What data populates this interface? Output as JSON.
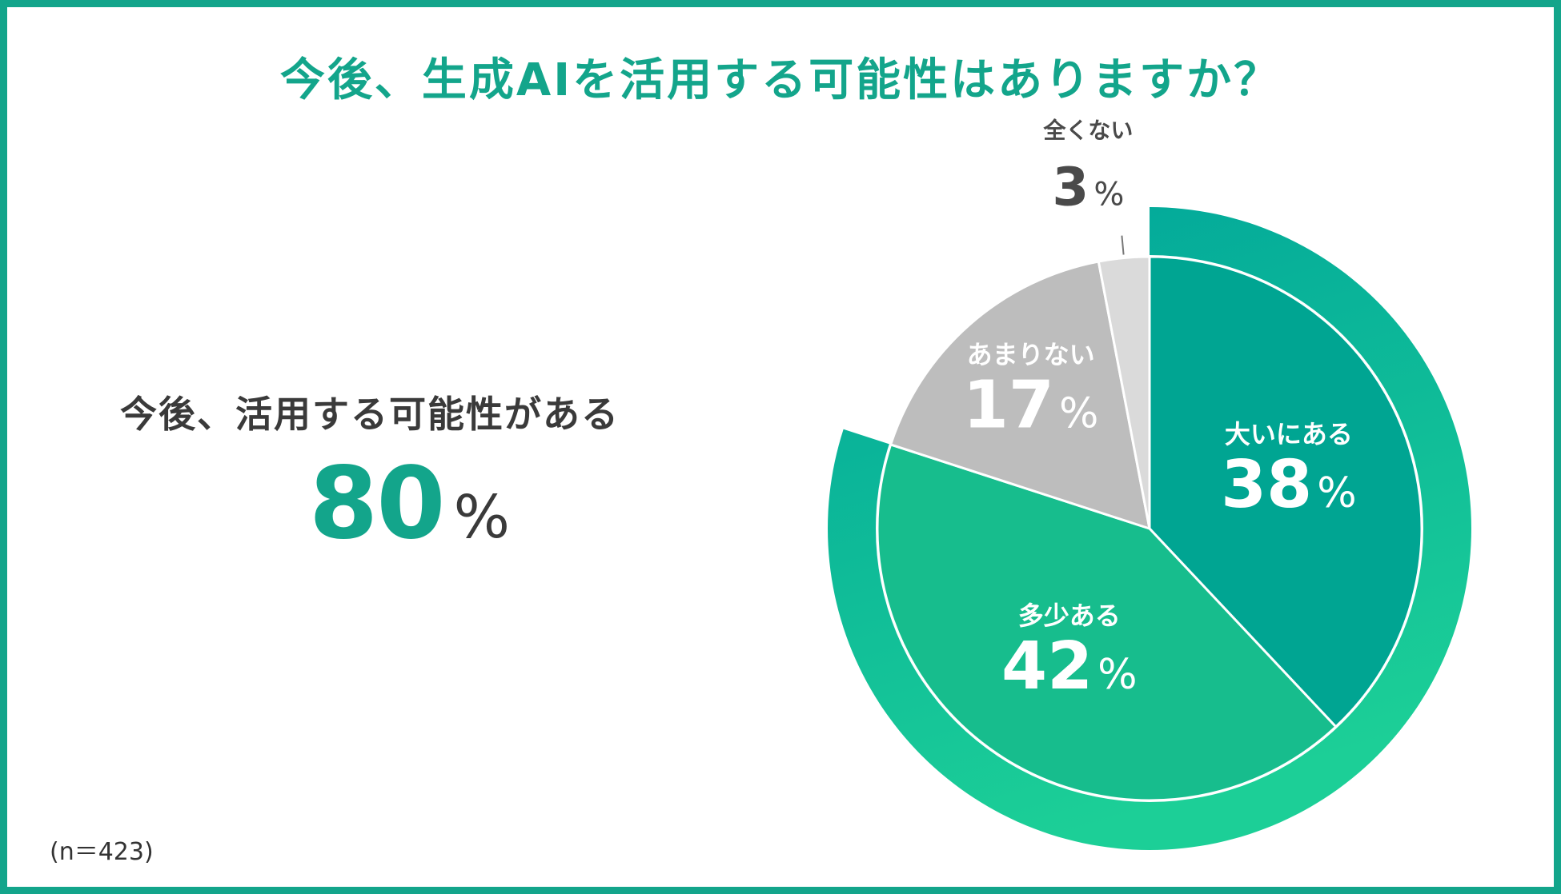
{
  "title": "今後、生成AIを活用する可能性はありますか？",
  "summary": {
    "label": "今後、活用する可能性がある",
    "value": "80",
    "unit": "%"
  },
  "note": "(n＝423)",
  "colors": {
    "accent": "#13a58b",
    "frame": "#13a58b",
    "text_dark": "#3a3a3a"
  },
  "chart_data": {
    "type": "pie",
    "start": "12 o'clock, clockwise",
    "slices": [
      {
        "label": "大いにある",
        "value": 38,
        "display": "38",
        "unit": "%",
        "color": "#00a592",
        "text_color": "#ffffff"
      },
      {
        "label": "多少ある",
        "value": 42,
        "display": "42",
        "unit": "%",
        "color": "#17bd8d",
        "text_color": "#ffffff"
      },
      {
        "label": "あまりない",
        "value": 17,
        "display": "17",
        "unit": "%",
        "color": "#bdbdbd",
        "text_color": "#ffffff"
      },
      {
        "label": "全くない",
        "value": 3,
        "display": "3",
        "unit": "%",
        "color": "#dadada",
        "text_color": "#4a4a4a"
      }
    ],
    "highlight_ring": {
      "covers": [
        "大いにある",
        "多少ある"
      ],
      "total": 80,
      "color_start": "#00a59a",
      "color_end": "#1ccf97"
    }
  }
}
